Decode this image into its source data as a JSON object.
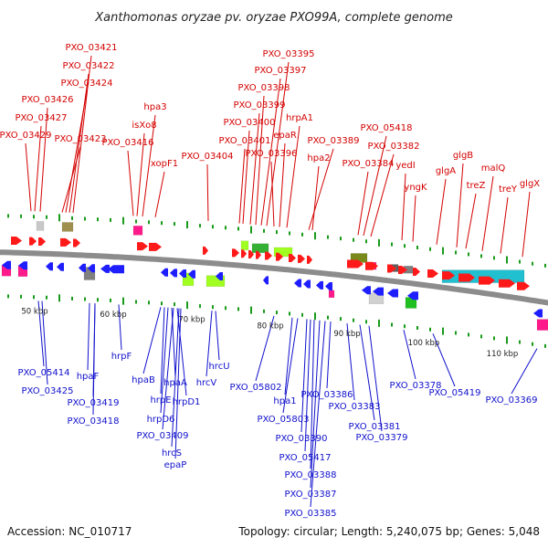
{
  "title": "Xanthomonas oryzae pv. oryzae PXO99A, complete genome",
  "footer": {
    "accession": "Accession: NC_010717",
    "summary": "Topology: circular; Length: 5,240,075 bp; Genes: 5,048"
  },
  "colors": {
    "forward_label": "#d40000",
    "reverse_label": "#1010cc",
    "backbone": "#8c8c8c",
    "forward_gene": "#ff1a1a",
    "reverse_gene": "#1e1eff",
    "cyan_feature": "#20c0d0",
    "tick": "#1a9a1a"
  },
  "kbp_ticks": [
    {
      "label": "50 kbp"
    },
    {
      "label": "60 kbp"
    },
    {
      "label": "70 kbp"
    },
    {
      "label": "80 kbp"
    },
    {
      "label": "90 kbp"
    },
    {
      "label": "100 kbp"
    },
    {
      "label": "110 kbp"
    }
  ],
  "forward_labels": [
    {
      "text": "PXO_03421"
    },
    {
      "text": "PXO_03422"
    },
    {
      "text": "PXO_03424"
    },
    {
      "text": "PXO_03426"
    },
    {
      "text": "PXO_03427"
    },
    {
      "text": "PXO_03429"
    },
    {
      "text": "PXO_03423"
    },
    {
      "text": "hpa3"
    },
    {
      "text": "isXo8"
    },
    {
      "text": "PXO_03416"
    },
    {
      "text": "xopF1"
    },
    {
      "text": "PXO_03404"
    },
    {
      "text": "PXO_03395"
    },
    {
      "text": "PXO_03397"
    },
    {
      "text": "PXO_03398"
    },
    {
      "text": "PXO_03399"
    },
    {
      "text": "PXO_03400"
    },
    {
      "text": "PXO_03401"
    },
    {
      "text": "PXO_03396"
    },
    {
      "text": "hrpA1"
    },
    {
      "text": "epaR"
    },
    {
      "text": "PXO_03389"
    },
    {
      "text": "hpa2"
    },
    {
      "text": "PXO_05418"
    },
    {
      "text": "PXO_03382"
    },
    {
      "text": "PXO_03384"
    },
    {
      "text": "yedI"
    },
    {
      "text": "yngK"
    },
    {
      "text": "glgA"
    },
    {
      "text": "glgB"
    },
    {
      "text": "treZ"
    },
    {
      "text": "malQ"
    },
    {
      "text": "treY"
    },
    {
      "text": "glgX"
    }
  ],
  "reverse_labels": [
    {
      "text": "PXO_05414"
    },
    {
      "text": "PXO_03425"
    },
    {
      "text": "hpaF"
    },
    {
      "text": "PXO_03419"
    },
    {
      "text": "PXO_03418"
    },
    {
      "text": "hrpF"
    },
    {
      "text": "hpaB"
    },
    {
      "text": "hrpE"
    },
    {
      "text": "hpaA"
    },
    {
      "text": "hrpD1"
    },
    {
      "text": "hrpD6"
    },
    {
      "text": "PXO_03409"
    },
    {
      "text": "hrcS"
    },
    {
      "text": "epaP"
    },
    {
      "text": "hrcV"
    },
    {
      "text": "hrcU"
    },
    {
      "text": "PXO_05802"
    },
    {
      "text": "hpa1"
    },
    {
      "text": "PXO_05803"
    },
    {
      "text": "PXO_03390"
    },
    {
      "text": "PXO_05417"
    },
    {
      "text": "PXO_03388"
    },
    {
      "text": "PXO_03387"
    },
    {
      "text": "PXO_03385"
    },
    {
      "text": "PXO_03386"
    },
    {
      "text": "PXO_03383"
    },
    {
      "text": "PXO_03381"
    },
    {
      "text": "PXO_03379"
    },
    {
      "text": "PXO_03378"
    },
    {
      "text": "PXO_05419"
    },
    {
      "text": "PXO_03369"
    }
  ]
}
